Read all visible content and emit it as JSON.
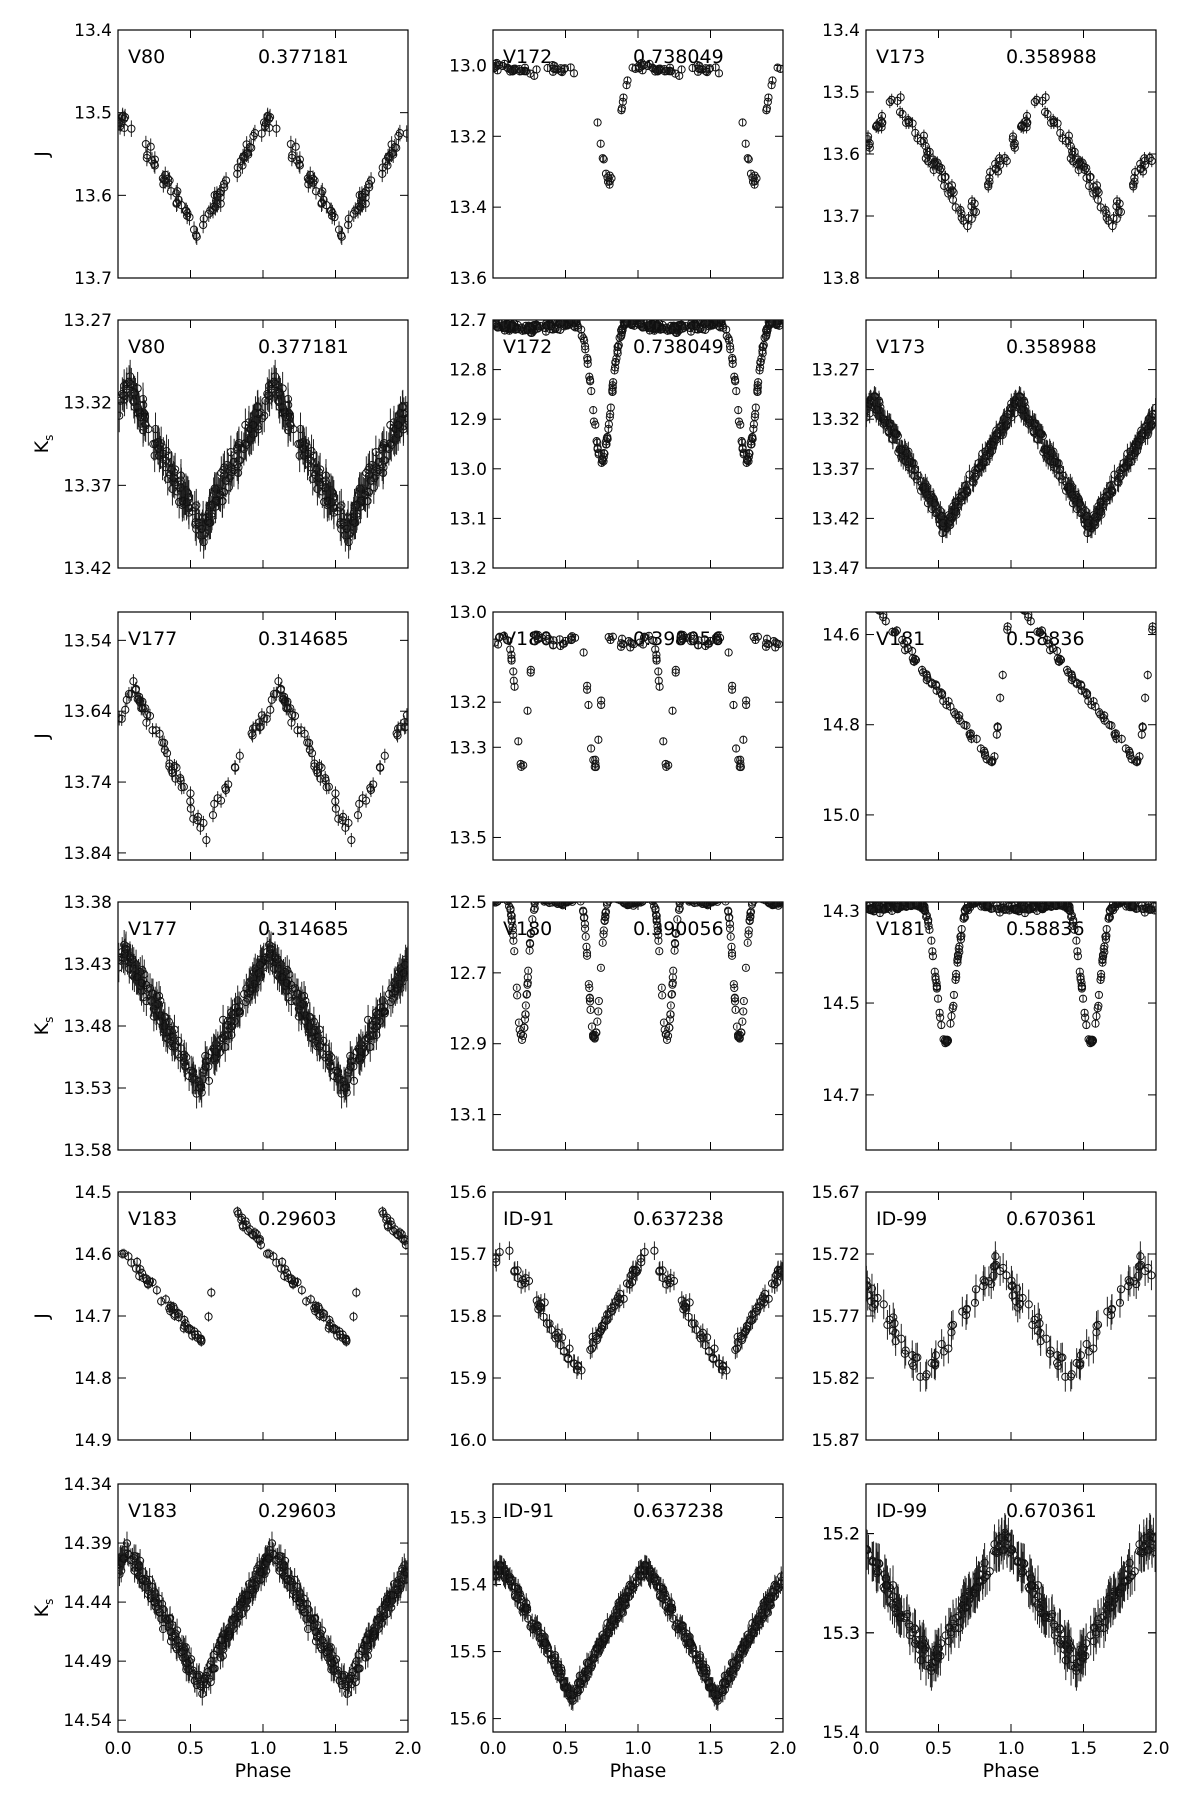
{
  "figure": {
    "x_axis_label": "Phase",
    "x_ticks": [
      "0.0",
      "0.5",
      "1.0",
      "1.5",
      "2.0"
    ]
  },
  "chart_data": [
    {
      "type": "scatter",
      "row": 0,
      "col": 0,
      "ylabel": "J",
      "star": "V80",
      "period": "0.377181",
      "xlim": [
        0,
        2
      ],
      "ylim": [
        13.4,
        13.7
      ],
      "yticks": [
        "13.4",
        "13.5",
        "13.6",
        "13.7"
      ],
      "inverted": true,
      "shape": "tri",
      "phi0": 0.55,
      "amp": 0.14,
      "mean": 13.575,
      "noise": 0.012,
      "err": 0.01,
      "n": 90,
      "gap": [
        [
          0.1,
          0.18
        ],
        [
          0.75,
          0.82
        ]
      ]
    },
    {
      "type": "scatter",
      "row": 0,
      "col": 1,
      "ylabel": "",
      "star": "V172",
      "period": "0.738049",
      "xlim": [
        0,
        2
      ],
      "ylim": [
        12.9,
        13.6
      ],
      "yticks": [
        "13.0",
        "13.2",
        "13.4",
        "13.6"
      ],
      "inverted": true,
      "shape": "ecl",
      "phi0": 0.8,
      "amp": 0.35,
      "mean": 13.15,
      "noise": 0.015,
      "err": 0.01,
      "n": 80,
      "gap": [
        [
          0.6,
          0.72
        ],
        [
          0.82,
          0.88
        ]
      ]
    },
    {
      "type": "scatter",
      "row": 0,
      "col": 2,
      "ylabel": "",
      "star": "V173",
      "period": "0.358988",
      "xlim": [
        0,
        2
      ],
      "ylim": [
        13.4,
        13.8
      ],
      "yticks": [
        "13.4",
        "13.5",
        "13.6",
        "13.7",
        "13.8"
      ],
      "inverted": true,
      "shape": "tri",
      "phi0": 0.7,
      "amp": 0.2,
      "mean": 13.61,
      "noise": 0.015,
      "err": 0.01,
      "n": 90,
      "gap": [
        [
          0.76,
          0.82
        ]
      ]
    },
    {
      "type": "scatter",
      "row": 1,
      "col": 0,
      "ylabel": "Ks",
      "star": "V80",
      "period": "0.377181",
      "xlim": [
        0,
        2
      ],
      "ylim": [
        13.27,
        13.42
      ],
      "yticks": [
        "13.27",
        "13.32",
        "13.37",
        "13.42"
      ],
      "inverted": true,
      "shape": "tri",
      "phi0": 0.57,
      "amp": 0.09,
      "mean": 13.355,
      "noise": 0.01,
      "err": 0.01,
      "n": 220,
      "gap": []
    },
    {
      "type": "scatter",
      "row": 1,
      "col": 1,
      "ylabel": "",
      "star": "V172",
      "period": "0.738049",
      "xlim": [
        0,
        2
      ],
      "ylim": [
        12.7,
        13.2
      ],
      "yticks": [
        "12.7",
        "12.8",
        "12.9",
        "13.0",
        "13.1",
        "13.2"
      ],
      "inverted": true,
      "shape": "ecl",
      "phi0": 0.75,
      "amp": 0.3,
      "mean": 12.83,
      "noise": 0.01,
      "err": 0.008,
      "n": 220,
      "gap": []
    },
    {
      "type": "scatter",
      "row": 1,
      "col": 2,
      "ylabel": "",
      "star": "V173",
      "period": "0.358988",
      "xlim": [
        0,
        2
      ],
      "ylim": [
        13.22,
        13.47
      ],
      "yticks": [
        "13.27",
        "13.32",
        "13.37",
        "13.42",
        "13.47"
      ],
      "inverted": true,
      "shape": "tri",
      "phi0": 0.55,
      "amp": 0.13,
      "mean": 13.365,
      "noise": 0.01,
      "err": 0.01,
      "n": 240,
      "gap": []
    },
    {
      "type": "scatter",
      "row": 2,
      "col": 0,
      "ylabel": "J",
      "star": "V177",
      "period": "0.314685",
      "xlim": [
        0,
        2
      ],
      "ylim": [
        13.5,
        13.85
      ],
      "yticks": [
        "13.54",
        "13.64",
        "13.74",
        "13.84"
      ],
      "inverted": true,
      "shape": "tri",
      "phi0": 0.6,
      "amp": 0.2,
      "mean": 13.71,
      "noise": 0.015,
      "err": 0.01,
      "n": 70,
      "gap": [
        [
          0.85,
          0.92
        ]
      ]
    },
    {
      "type": "scatter",
      "row": 2,
      "col": 1,
      "ylabel": "",
      "star": "V180",
      "period": "0.390056",
      "xlim": [
        0,
        2
      ],
      "ylim": [
        13.0,
        13.55
      ],
      "yticks": [
        "13.0",
        "13.2",
        "13.3",
        "13.5"
      ],
      "inverted": true,
      "shape": "ecl2",
      "phi0": 0.2,
      "amp": 0.32,
      "mean": 13.18,
      "noise": 0.012,
      "err": 0.008,
      "n": 70,
      "gap": []
    },
    {
      "type": "scatter",
      "row": 2,
      "col": 2,
      "ylabel": "",
      "star": "V181",
      "period": "0.58836",
      "xlim": [
        0,
        2
      ],
      "ylim": [
        14.55,
        15.1
      ],
      "yticks": [
        "14.6",
        "14.8",
        "15.0"
      ],
      "inverted": true,
      "shape": "saw",
      "phi0": 0.88,
      "amp": 0.38,
      "mean": 14.7,
      "noise": 0.012,
      "err": 0.01,
      "n": 80,
      "gap": []
    },
    {
      "type": "scatter",
      "row": 3,
      "col": 0,
      "ylabel": "Ks",
      "star": "V177",
      "period": "0.314685",
      "xlim": [
        0,
        2
      ],
      "ylim": [
        13.38,
        13.58
      ],
      "yticks": [
        "13.38",
        "13.43",
        "13.48",
        "13.53",
        "13.58"
      ],
      "inverted": true,
      "shape": "tri",
      "phi0": 0.55,
      "amp": 0.11,
      "mean": 13.475,
      "noise": 0.012,
      "err": 0.012,
      "n": 220,
      "gap": []
    },
    {
      "type": "scatter",
      "row": 3,
      "col": 1,
      "ylabel": "",
      "star": "V180",
      "period": "0.390056",
      "xlim": [
        0,
        2
      ],
      "ylim": [
        12.5,
        13.2
      ],
      "yticks": [
        "12.5",
        "12.7",
        "12.9",
        "13.1"
      ],
      "inverted": true,
      "shape": "ecl2",
      "phi0": 0.2,
      "amp": 0.45,
      "mean": 12.66,
      "noise": 0.01,
      "err": 0.006,
      "n": 220,
      "gap": []
    },
    {
      "type": "scatter",
      "row": 3,
      "col": 2,
      "ylabel": "",
      "star": "V181",
      "period": "0.58836",
      "xlim": [
        0,
        2
      ],
      "ylim": [
        14.28,
        14.82
      ],
      "yticks": [
        "14.3",
        "14.5",
        "14.7"
      ],
      "inverted": true,
      "shape": "ecl",
      "phi0": 0.55,
      "amp": 0.33,
      "mean": 14.42,
      "noise": 0.01,
      "err": 0.008,
      "n": 220,
      "gap": []
    },
    {
      "type": "scatter",
      "row": 4,
      "col": 0,
      "ylabel": "J",
      "star": "V183",
      "period": "0.29603",
      "xlim": [
        0,
        2
      ],
      "ylim": [
        14.5,
        14.9
      ],
      "yticks": [
        "14.5",
        "14.6",
        "14.7",
        "14.8",
        "14.9"
      ],
      "inverted": true,
      "shape": "saw",
      "phi0": 0.6,
      "amp": 0.24,
      "mean": 14.63,
      "noise": 0.01,
      "err": 0.008,
      "n": 80,
      "gap": [
        [
          0.65,
          0.82
        ]
      ]
    },
    {
      "type": "scatter",
      "row": 4,
      "col": 1,
      "ylabel": "",
      "star": "ID-91",
      "period": "0.637238",
      "xlim": [
        0,
        2
      ],
      "ylim": [
        15.6,
        16.0
      ],
      "yticks": [
        "15.6",
        "15.7",
        "15.8",
        "15.9",
        "16.0"
      ],
      "inverted": true,
      "shape": "tri",
      "phi0": 0.58,
      "amp": 0.2,
      "mean": 15.79,
      "noise": 0.015,
      "err": 0.015,
      "n": 80,
      "gap": []
    },
    {
      "type": "scatter",
      "row": 4,
      "col": 2,
      "ylabel": "",
      "star": "ID-99",
      "period": "0.670361",
      "xlim": [
        0,
        2
      ],
      "ylim": [
        15.67,
        15.87
      ],
      "yticks": [
        "15.67",
        "15.72",
        "15.77",
        "15.82",
        "15.87"
      ],
      "inverted": true,
      "shape": "tri",
      "phi0": 0.4,
      "amp": 0.1,
      "mean": 15.775,
      "noise": 0.01,
      "err": 0.012,
      "n": 60,
      "gap": []
    },
    {
      "type": "scatter",
      "row": 5,
      "col": 0,
      "ylabel": "Ks",
      "star": "V183",
      "period": "0.29603",
      "xlim": [
        0,
        2
      ],
      "ylim": [
        14.34,
        14.55
      ],
      "yticks": [
        "14.34",
        "14.39",
        "14.44",
        "14.49",
        "14.54"
      ],
      "inverted": true,
      "shape": "tri",
      "phi0": 0.57,
      "amp": 0.12,
      "mean": 14.455,
      "noise": 0.01,
      "err": 0.01,
      "n": 220,
      "gap": []
    },
    {
      "type": "scatter",
      "row": 5,
      "col": 1,
      "ylabel": "",
      "star": "ID-91",
      "period": "0.637238",
      "xlim": [
        0,
        2
      ],
      "ylim": [
        15.25,
        15.62
      ],
      "yticks": [
        "15.3",
        "15.4",
        "15.5",
        "15.6"
      ],
      "inverted": true,
      "shape": "tri",
      "phi0": 0.55,
      "amp": 0.2,
      "mean": 15.47,
      "noise": 0.012,
      "err": 0.015,
      "n": 220,
      "gap": []
    },
    {
      "type": "scatter",
      "row": 5,
      "col": 2,
      "ylabel": "",
      "star": "ID-99",
      "period": "0.670361",
      "xlim": [
        0,
        2
      ],
      "ylim": [
        15.15,
        15.4
      ],
      "yticks": [
        "15.2",
        "15.2",
        "15.3",
        "15.3",
        "15.4"
      ],
      "inverted": true,
      "shape": "tri",
      "phi0": 0.45,
      "amp": 0.13,
      "mean": 15.27,
      "noise": 0.012,
      "err": 0.02,
      "n": 160,
      "gap": []
    }
  ]
}
